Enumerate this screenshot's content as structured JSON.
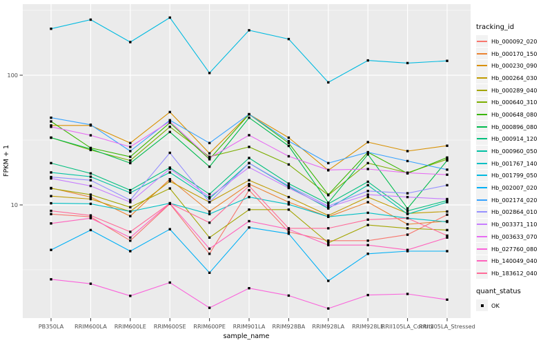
{
  "chart_data": {
    "type": "line",
    "title": "",
    "xlabel": "sample_name",
    "ylabel": "FPKM + 1",
    "yscale": "log10",
    "ylim": [
      1.3,
      355
    ],
    "grid": {
      "major_y": [
        10,
        100
      ],
      "minor_y": [
        3.162,
        31.62,
        316.23
      ],
      "vertical_major": true
    },
    "y_ticks": [
      {
        "label": "100",
        "value": 100
      },
      {
        "label": "10",
        "value": 10
      }
    ],
    "categories": [
      "PB350LA",
      "RRIM600LA",
      "RRIM600LE",
      "RRIM600SE",
      "RRIM600PE",
      "RRIM901LA",
      "RRIM928BA",
      "RRIM928LA",
      "RRIM928LE",
      "RRII105LA_Control",
      "RRII105LA_Stressed"
    ],
    "marker": {
      "shape": "square",
      "color": "#000000"
    },
    "panel_bg": "#EBEBEB",
    "gridline_color": "#FFFFFF",
    "tick_label_color": "#4D4D4D",
    "series": [
      {
        "name": "Hb_000092_020",
        "color": "#F8766D",
        "values": [
          8.5,
          8.1,
          5.3,
          10.2,
          4.2,
          13.0,
          6.2,
          5.3,
          5.3,
          5.9,
          8.4
        ]
      },
      {
        "name": "Hb_000170_150",
        "color": "#EA8331",
        "values": [
          13.5,
          11.5,
          8.2,
          15.8,
          8.9,
          14.5,
          10.5,
          8.1,
          10.5,
          7.1,
          7.5
        ]
      },
      {
        "name": "Hb_000230_090",
        "color": "#D89000",
        "values": [
          41,
          41,
          30,
          52,
          25,
          50,
          33,
          18.5,
          30.5,
          26,
          28.6
        ]
      },
      {
        "name": "Hb_000264_030",
        "color": "#C09B00",
        "values": [
          11.7,
          11.1,
          8.9,
          15.2,
          10.5,
          15.5,
          11.5,
          8.3,
          11.5,
          8.6,
          8.9
        ]
      },
      {
        "name": "Hb_000289_040",
        "color": "#A3A500",
        "values": [
          13.4,
          12.0,
          9.6,
          13.4,
          5.6,
          9.2,
          9.2,
          5.1,
          7.0,
          6.6,
          6.4
        ]
      },
      {
        "name": "Hb_000640_310",
        "color": "#7CAE00",
        "values": [
          33,
          26.5,
          22,
          40,
          23.5,
          28,
          20.5,
          11.9,
          21,
          17.7,
          22.5
        ]
      },
      {
        "name": "Hb_000648_080",
        "color": "#39B600",
        "values": [
          44,
          27.5,
          23.5,
          43,
          22.5,
          50,
          30,
          12.0,
          25.5,
          17.5,
          23.2
        ]
      },
      {
        "name": "Hb_000896_080",
        "color": "#00BB4E",
        "values": [
          33,
          27,
          21,
          36.5,
          19.7,
          47,
          28.5,
          10.4,
          24.5,
          9.4,
          22
        ]
      },
      {
        "name": "Hb_000914_120",
        "color": "#00BF7D",
        "values": [
          21,
          17.5,
          13,
          19.4,
          12.1,
          23,
          14.6,
          10.2,
          15.1,
          9.0,
          10.8
        ]
      },
      {
        "name": "Hb_000960_050",
        "color": "#00C1A3",
        "values": [
          17.8,
          16.5,
          12.4,
          17.8,
          11.2,
          21,
          13.8,
          9.4,
          14.2,
          8.5,
          10.5
        ]
      },
      {
        "name": "Hb_001767_140",
        "color": "#00BFC4",
        "values": [
          10.3,
          10.2,
          8.9,
          10.3,
          8.5,
          11.5,
          10.1,
          8.1,
          8.7,
          7.9,
          7.4
        ]
      },
      {
        "name": "Hb_001799_050",
        "color": "#00BAE0",
        "values": [
          228,
          268,
          180,
          278,
          104,
          222,
          190,
          88,
          130,
          124,
          129
        ]
      },
      {
        "name": "Hb_002007_020",
        "color": "#00B0F6",
        "values": [
          4.5,
          6.4,
          4.4,
          6.5,
          3.0,
          6.7,
          6.0,
          2.6,
          4.2,
          4.4,
          4.4
        ]
      },
      {
        "name": "Hb_002174_020",
        "color": "#35A2FF",
        "values": [
          47,
          41.5,
          26,
          45,
          30,
          50,
          31,
          21,
          25.5,
          21.8,
          18.7
        ]
      },
      {
        "name": "Hb_002864_010",
        "color": "#9590FF",
        "values": [
          16.4,
          15.5,
          10.9,
          25.2,
          10.5,
          21,
          14,
          9.8,
          12.8,
          12.3,
          14.2
        ]
      },
      {
        "name": "Hb_003371_110",
        "color": "#C77CFF",
        "values": [
          16.0,
          14.0,
          10.5,
          19.0,
          11.5,
          19.5,
          13.5,
          9.6,
          12.0,
          11.5,
          11.1
        ]
      },
      {
        "name": "Hb_003633_070",
        "color": "#E76BF3",
        "values": [
          40,
          34.4,
          28,
          44,
          23,
          34.5,
          23.7,
          18.6,
          18.9,
          17.7,
          17.1
        ]
      },
      {
        "name": "Hb_027760_080",
        "color": "#FA62DB",
        "values": [
          2.67,
          2.47,
          1.99,
          2.52,
          1.61,
          2.28,
          2.0,
          1.59,
          2.02,
          2.06,
          1.86
        ]
      },
      {
        "name": "Hb_140049_040",
        "color": "#FF62BC",
        "values": [
          7.2,
          7.9,
          5.6,
          10.3,
          4.6,
          7.5,
          6.5,
          4.9,
          4.9,
          4.5,
          5.6
        ]
      },
      {
        "name": "Hb_183612_040",
        "color": "#FF6A98",
        "values": [
          9.0,
          8.3,
          6.2,
          10.3,
          7.3,
          14,
          6.6,
          6.6,
          7.7,
          7.9,
          5.8
        ]
      }
    ],
    "legend": {
      "title": "tracking_id",
      "position": "right"
    },
    "legend2": {
      "title": "quant_status",
      "items": [
        {
          "label": "OK",
          "marker": "square",
          "color": "#000000"
        }
      ]
    }
  }
}
